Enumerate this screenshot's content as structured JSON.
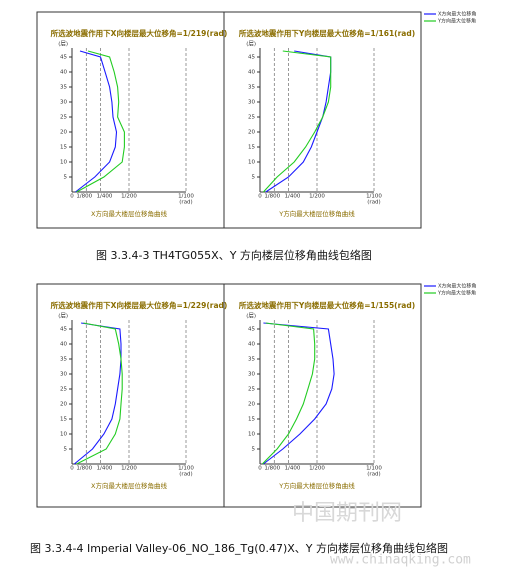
{
  "chart_data": [
    {
      "type": "line",
      "title": "所选波地震作用下X向楼层最大位移角=1/219(rad)",
      "x_label": "X方向最大楼层位移角曲线",
      "y_unit": "(层)",
      "x_unit": "(rad)",
      "y": [
        0,
        5,
        10,
        15,
        20,
        25,
        30,
        35,
        40,
        45,
        47
      ],
      "series": [
        {
          "name": "X方向最大位移角",
          "color": "#1a1aff",
          "values": [
            0.0003,
            0.002,
            0.0033,
            0.0038,
            0.0039,
            0.0036,
            0.0035,
            0.0033,
            0.0029,
            0.0025,
            0.0007
          ]
        },
        {
          "name": "Y方向最大位移角",
          "color": "#22cc22",
          "values": [
            0.0004,
            0.0028,
            0.0044,
            0.0046,
            0.0046,
            0.004,
            0.0041,
            0.004,
            0.0037,
            0.0033,
            0.0014
          ]
        }
      ],
      "xlim": [
        0,
        0.01
      ],
      "ylim": [
        0,
        48
      ],
      "xticks": [
        0,
        {
          "value": 0.00125,
          "label": "1/800"
        },
        {
          "value": 0.0025,
          "label": "1/400"
        },
        {
          "value": 0.005,
          "label": "1/200"
        },
        {
          "value": 0.01,
          "label": "1/100"
        }
      ],
      "yticks": [
        5,
        10,
        15,
        20,
        25,
        30,
        35,
        40,
        45
      ],
      "grid": true
    },
    {
      "type": "line",
      "title": "所选波地震作用下Y向楼层最大位移角=1/161(rad)",
      "x_label": "Y方向最大楼层位移角曲线",
      "y_unit": "(层)",
      "x_unit": "(rad)",
      "y": [
        0,
        5,
        10,
        15,
        20,
        25,
        30,
        35,
        40,
        45,
        47
      ],
      "series": [
        {
          "name": "X方向最大位移角",
          "color": "#1a1aff",
          "values": [
            0.0005,
            0.0025,
            0.0038,
            0.0045,
            0.005,
            0.0055,
            0.0058,
            0.006,
            0.0062,
            0.0062,
            0.003
          ]
        },
        {
          "name": "Y方向最大位移角",
          "color": "#22cc22",
          "values": [
            0.0003,
            0.0015,
            0.003,
            0.004,
            0.0048,
            0.0055,
            0.006,
            0.0062,
            0.0062,
            0.0062,
            0.002
          ]
        }
      ],
      "xlim": [
        0,
        0.01
      ],
      "ylim": [
        0,
        48
      ],
      "xticks": [
        0,
        {
          "value": 0.00125,
          "label": "1/800"
        },
        {
          "value": 0.0025,
          "label": "1/400"
        },
        {
          "value": 0.005,
          "label": "1/200"
        },
        {
          "value": 0.01,
          "label": "1/100"
        }
      ],
      "yticks": [
        5,
        10,
        15,
        20,
        25,
        30,
        35,
        40,
        45
      ],
      "grid": true
    },
    {
      "type": "line",
      "title": "所选波地震作用下X向楼层最大位移角=1/229(rad)",
      "x_label": "X方向最大楼层位移角曲线",
      "y_unit": "(层)",
      "x_unit": "(rad)",
      "y": [
        0,
        5,
        10,
        15,
        20,
        25,
        30,
        35,
        40,
        45,
        47
      ],
      "series": [
        {
          "name": "X方向最大位移角",
          "color": "#1a1aff",
          "values": [
            0.0002,
            0.0018,
            0.0028,
            0.0035,
            0.0038,
            0.004,
            0.0042,
            0.0043,
            0.0043,
            0.0042,
            0.0008
          ]
        },
        {
          "name": "Y方向最大位移角",
          "color": "#22cc22",
          "values": [
            0.0004,
            0.003,
            0.0038,
            0.0042,
            0.0043,
            0.0044,
            0.0044,
            0.0043,
            0.0041,
            0.0038,
            0.001
          ]
        }
      ],
      "xlim": [
        0,
        0.01
      ],
      "ylim": [
        0,
        48
      ],
      "xticks": [
        0,
        {
          "value": 0.00125,
          "label": "1/800"
        },
        {
          "value": 0.0025,
          "label": "1/400"
        },
        {
          "value": 0.005,
          "label": "1/200"
        },
        {
          "value": 0.01,
          "label": "1/100"
        }
      ],
      "yticks": [
        5,
        10,
        15,
        20,
        25,
        30,
        35,
        40,
        45
      ],
      "grid": true
    },
    {
      "type": "line",
      "title": "所选波地震作用下Y向楼层最大位移角=1/155(rad)",
      "x_label": "Y方向最大楼层位移角曲线",
      "y_unit": "(层)",
      "x_unit": "(rad)",
      "y": [
        0,
        5,
        10,
        15,
        20,
        25,
        30,
        35,
        40,
        45,
        47
      ],
      "series": [
        {
          "name": "X方向最大位移角",
          "color": "#1a1aff",
          "values": [
            0.0003,
            0.002,
            0.0035,
            0.0048,
            0.0058,
            0.0063,
            0.0065,
            0.0064,
            0.0062,
            0.006,
            0.0003
          ]
        },
        {
          "name": "Y方向最大位移角",
          "color": "#22cc22",
          "values": [
            0.0002,
            0.0015,
            0.0025,
            0.0032,
            0.0038,
            0.0042,
            0.0046,
            0.0048,
            0.0048,
            0.0047,
            0.0005
          ]
        }
      ],
      "xlim": [
        0,
        0.01
      ],
      "ylim": [
        0,
        48
      ],
      "xticks": [
        0,
        {
          "value": 0.00125,
          "label": "1/800"
        },
        {
          "value": 0.0025,
          "label": "1/400"
        },
        {
          "value": 0.005,
          "label": "1/200"
        },
        {
          "value": 0.01,
          "label": "1/100"
        }
      ],
      "yticks": [
        5,
        10,
        15,
        20,
        25,
        30,
        35,
        40,
        45
      ],
      "grid": true
    }
  ],
  "captions": [
    "图 3.3.4-3  TH4TG055X、Y 方向楼层位移角曲线包络图",
    "图 3.3.4-4  Imperial Valley-06_NO_186_Tg(0.47)X、Y 方向楼层位移角曲线包络图"
  ],
  "watermark": {
    "name": "中国期刊网",
    "url": "www.chinaqking.com"
  }
}
